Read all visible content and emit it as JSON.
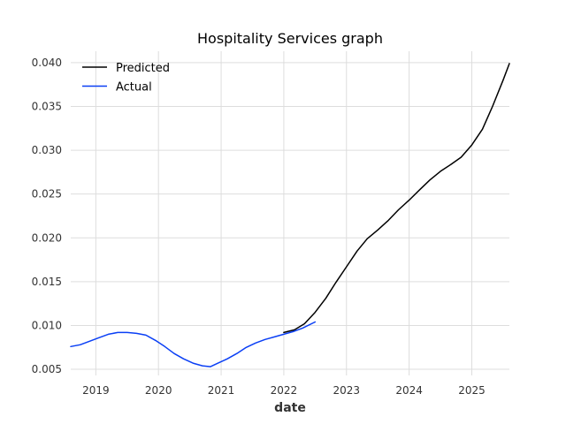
{
  "chart_data": {
    "type": "line",
    "title": "Hospitality Services graph",
    "xlabel": "date",
    "ylabel": "",
    "xlim": [
      2018.6,
      2025.6
    ],
    "ylim": [
      0.0043,
      0.0413
    ],
    "x_ticks": [
      2019,
      2020,
      2021,
      2022,
      2023,
      2024,
      2025
    ],
    "x_tick_labels": [
      "2019",
      "2020",
      "2021",
      "2022",
      "2023",
      "2024",
      "2025"
    ],
    "y_ticks": [
      0.005,
      0.01,
      0.015,
      0.02,
      0.025,
      0.03,
      0.035,
      0.04
    ],
    "y_tick_labels": [
      "0.005",
      "0.010",
      "0.015",
      "0.020",
      "0.025",
      "0.030",
      "0.035",
      "0.040"
    ],
    "grid": true,
    "legend_position": "top-left",
    "series": [
      {
        "name": "Predicted",
        "color": "#000000",
        "x": [
          2022.0,
          2022.17,
          2022.33,
          2022.5,
          2022.67,
          2022.83,
          2023.0,
          2023.17,
          2023.33,
          2023.5,
          2023.67,
          2023.83,
          2024.0,
          2024.17,
          2024.33,
          2024.5,
          2024.67,
          2024.83,
          2025.0,
          2025.17,
          2025.33,
          2025.5,
          2025.6
        ],
        "values": [
          0.0092,
          0.0095,
          0.0102,
          0.0115,
          0.0131,
          0.0149,
          0.0167,
          0.0185,
          0.0199,
          0.0209,
          0.022,
          0.0232,
          0.0243,
          0.0255,
          0.0266,
          0.0276,
          0.0284,
          0.0292,
          0.0306,
          0.0324,
          0.035,
          0.038,
          0.0399
        ]
      },
      {
        "name": "Actual",
        "color": "#0a3ff5",
        "x": [
          2018.6,
          2018.75,
          2018.9,
          2019.05,
          2019.2,
          2019.35,
          2019.5,
          2019.65,
          2019.8,
          2019.95,
          2020.1,
          2020.25,
          2020.4,
          2020.55,
          2020.7,
          2020.83,
          2020.95,
          2021.1,
          2021.25,
          2021.4,
          2021.55,
          2021.7,
          2021.85,
          2022.0,
          2022.15,
          2022.3,
          2022.5
        ],
        "values": [
          0.0076,
          0.0078,
          0.0082,
          0.0086,
          0.009,
          0.0092,
          0.0092,
          0.0091,
          0.0089,
          0.0083,
          0.0076,
          0.0068,
          0.0062,
          0.0057,
          0.0054,
          0.0053,
          0.0057,
          0.0062,
          0.0068,
          0.0075,
          0.008,
          0.0084,
          0.0087,
          0.009,
          0.0093,
          0.0097,
          0.0104
        ]
      }
    ]
  }
}
